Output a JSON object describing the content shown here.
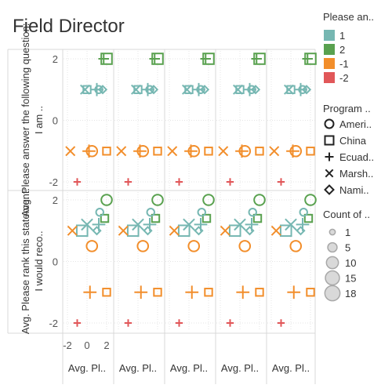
{
  "title": "Field Director",
  "legends": {
    "color": {
      "title": "Please an..",
      "items": [
        {
          "label": "1",
          "color": "#76b7b2"
        },
        {
          "label": "2",
          "color": "#59a14f"
        },
        {
          "label": "-1",
          "color": "#f28e2b"
        },
        {
          "label": "-2",
          "color": "#e15759"
        }
      ]
    },
    "shape": {
      "title": "Program ..",
      "items": [
        {
          "label": "Ameri..",
          "shape": "circle"
        },
        {
          "label": "China",
          "shape": "square"
        },
        {
          "label": "Ecuad..",
          "shape": "plus"
        },
        {
          "label": "Marsh..",
          "shape": "cross"
        },
        {
          "label": "Nami..",
          "shape": "diamond"
        }
      ]
    },
    "size": {
      "title": "Count of ..",
      "items": [
        {
          "label": "1",
          "value": 1
        },
        {
          "label": "5",
          "value": 5
        },
        {
          "label": "10",
          "value": 10
        },
        {
          "label": "15",
          "value": 15
        },
        {
          "label": "18",
          "value": 18
        }
      ]
    }
  },
  "chart_data": {
    "type": "scatter",
    "grid": true,
    "rows": [
      {
        "label": "Avg. Please answer the following question: I am ..",
        "ticks": [
          2,
          0,
          -2
        ],
        "ylim": [
          -2.3,
          2.3
        ]
      },
      {
        "label": "Avg. Please rank this statement: I would reco..",
        "ticks": [
          2,
          0,
          -2
        ],
        "ylim": [
          -2.3,
          2.3
        ]
      }
    ],
    "columns": [
      {
        "label": "Avg. Pl..",
        "ticks": [
          -2,
          0,
          2
        ],
        "xlim": [
          -2.3,
          2.3
        ]
      },
      {
        "label": "Avg. Pl..",
        "ticks": [],
        "xlim": [
          -2.3,
          2.3
        ]
      },
      {
        "label": "Avg. Pl..",
        "ticks": [],
        "xlim": [
          -2.3,
          2.3
        ]
      },
      {
        "label": "Avg. Pl..",
        "ticks": [],
        "xlim": [
          -2.3,
          2.3
        ]
      },
      {
        "label": "Avg. Pl..",
        "ticks": [],
        "xlim": [
          -2.3,
          2.3
        ]
      }
    ],
    "marks_top": [
      {
        "shape": "square",
        "color": "2",
        "x": 2.0,
        "y": 2.0,
        "size": 5
      },
      {
        "shape": "plus",
        "color": "2",
        "x": 1.7,
        "y": 2.0,
        "size": 5
      },
      {
        "shape": "cross",
        "color": "1",
        "x": -0.2,
        "y": 1.0,
        "size": 5
      },
      {
        "shape": "square",
        "color": "1",
        "x": 0.0,
        "y": 1.0,
        "size": 1
      },
      {
        "shape": "plus",
        "color": "1",
        "x": 1.0,
        "y": 1.0,
        "size": 10
      },
      {
        "shape": "circle",
        "color": "1",
        "x": 1.2,
        "y": 1.0,
        "size": 1
      },
      {
        "shape": "diamond",
        "color": "1",
        "x": 1.6,
        "y": 1.0,
        "size": 1
      },
      {
        "shape": "cross",
        "color": "-1",
        "x": -1.7,
        "y": -1.0,
        "size": 5
      },
      {
        "shape": "plus",
        "color": "-1",
        "x": 0.2,
        "y": -1.0,
        "size": 10
      },
      {
        "shape": "circle",
        "color": "-1",
        "x": 0.5,
        "y": -1.0,
        "size": 5
      },
      {
        "shape": "square",
        "color": "-1",
        "x": 2.0,
        "y": -1.0,
        "size": 1
      },
      {
        "shape": "plus",
        "color": "-2",
        "x": -1.0,
        "y": -2.0,
        "size": 1
      }
    ],
    "marks_bottom": [
      {
        "shape": "circle",
        "color": "2",
        "x": 2.0,
        "y": 2.0,
        "size": 5
      },
      {
        "shape": "square",
        "color": "2",
        "x": 1.8,
        "y": 1.4,
        "size": 1
      },
      {
        "shape": "circle",
        "color": "1",
        "x": 1.3,
        "y": 1.6,
        "size": 1
      },
      {
        "shape": "cross",
        "color": "1",
        "x": 0.0,
        "y": 1.2,
        "size": 10
      },
      {
        "shape": "plus",
        "color": "1",
        "x": 1.2,
        "y": 1.2,
        "size": 10
      },
      {
        "shape": "square",
        "color": "1",
        "x": -0.5,
        "y": 1.0,
        "size": 5
      },
      {
        "shape": "diamond",
        "color": "1",
        "x": 1.0,
        "y": 1.0,
        "size": 1
      },
      {
        "shape": "cross",
        "color": "-1",
        "x": -1.5,
        "y": 1.0,
        "size": 5
      },
      {
        "shape": "circle",
        "color": "-1",
        "x": 0.5,
        "y": 0.5,
        "size": 5
      },
      {
        "shape": "plus",
        "color": "-1",
        "x": 0.3,
        "y": -1.0,
        "size": 10
      },
      {
        "shape": "square",
        "color": "-1",
        "x": 2.0,
        "y": -1.0,
        "size": 1
      },
      {
        "shape": "plus",
        "color": "-2",
        "x": -1.0,
        "y": -2.0,
        "size": 1
      }
    ]
  }
}
